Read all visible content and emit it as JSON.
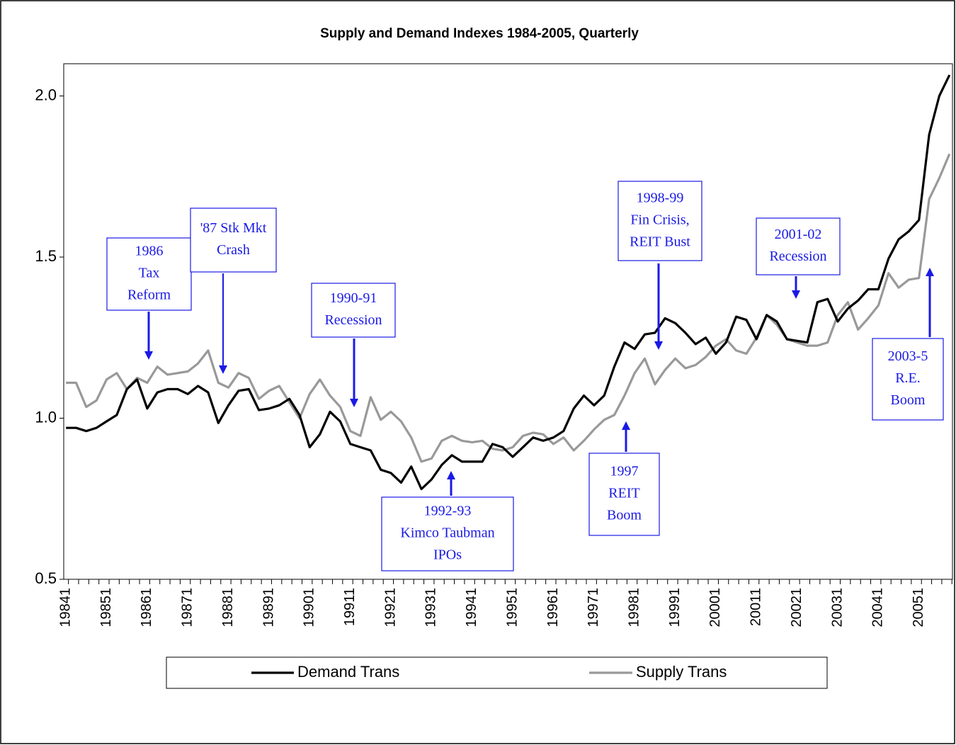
{
  "chart_data": {
    "type": "line",
    "title": "Supply and Demand Indexes 1984-2005, Quarterly",
    "categories": [
      "19841",
      null,
      null,
      null,
      "19851",
      null,
      null,
      null,
      "19861",
      null,
      null,
      null,
      "19871",
      null,
      null,
      null,
      "19881",
      null,
      null,
      null,
      "19891",
      null,
      null,
      null,
      "19901",
      null,
      null,
      null,
      "19911",
      null,
      null,
      null,
      "19921",
      null,
      null,
      null,
      "19931",
      null,
      null,
      null,
      "19941",
      null,
      null,
      null,
      "19951",
      null,
      null,
      null,
      "19961",
      null,
      null,
      null,
      "19971",
      null,
      null,
      null,
      "19981",
      null,
      null,
      null,
      "19991",
      null,
      null,
      null,
      "20001",
      null,
      null,
      null,
      "20011",
      null,
      null,
      null,
      "20021",
      null,
      null,
      null,
      "20031",
      null,
      null,
      null,
      "20041",
      null,
      null,
      null,
      "20051",
      null,
      null,
      null
    ],
    "series": [
      {
        "name": "Demand Trans",
        "color": "#000000",
        "values": [
          0.97,
          0.97,
          0.96,
          0.97,
          0.99,
          1.01,
          1.09,
          1.12,
          1.03,
          1.08,
          1.09,
          1.09,
          1.075,
          1.1,
          1.08,
          0.985,
          1.04,
          1.085,
          1.09,
          1.025,
          1.03,
          1.04,
          1.06,
          1.01,
          0.91,
          0.95,
          1.02,
          0.99,
          0.92,
          0.91,
          0.9,
          0.84,
          0.83,
          0.8,
          0.85,
          0.78,
          0.81,
          0.855,
          0.885,
          0.865,
          0.865,
          0.865,
          0.92,
          0.91,
          0.88,
          0.91,
          0.94,
          0.93,
          0.94,
          0.96,
          1.03,
          1.07,
          1.04,
          1.07,
          1.16,
          1.235,
          1.215,
          1.26,
          1.265,
          1.31,
          1.295,
          1.265,
          1.23,
          1.25,
          1.2,
          1.235,
          1.315,
          1.305,
          1.245,
          1.32,
          1.3,
          1.245,
          1.24,
          1.235,
          1.36,
          1.37,
          1.3,
          1.34,
          1.365,
          1.4,
          1.4,
          1.495,
          1.555,
          1.58,
          1.615,
          1.88,
          2.0,
          2.065
        ]
      },
      {
        "name": "Supply Trans",
        "color": "#999999",
        "values": [
          1.11,
          1.11,
          1.035,
          1.055,
          1.12,
          1.14,
          1.09,
          1.125,
          1.11,
          1.16,
          1.135,
          1.14,
          1.145,
          1.17,
          1.21,
          1.11,
          1.095,
          1.14,
          1.125,
          1.06,
          1.085,
          1.1,
          1.05,
          1.0,
          1.075,
          1.12,
          1.07,
          1.035,
          0.96,
          0.945,
          1.065,
          0.995,
          1.02,
          0.99,
          0.94,
          0.865,
          0.875,
          0.93,
          0.945,
          0.93,
          0.925,
          0.93,
          0.905,
          0.9,
          0.91,
          0.945,
          0.955,
          0.95,
          0.92,
          0.94,
          0.9,
          0.93,
          0.965,
          0.995,
          1.01,
          1.07,
          1.14,
          1.185,
          1.105,
          1.15,
          1.185,
          1.155,
          1.165,
          1.19,
          1.225,
          1.245,
          1.21,
          1.2,
          1.25,
          1.32,
          1.29,
          1.245,
          1.235,
          1.225,
          1.225,
          1.235,
          1.32,
          1.36,
          1.275,
          1.31,
          1.35,
          1.45,
          1.405,
          1.43,
          1.435,
          1.68,
          1.745,
          1.82
        ]
      }
    ],
    "ylim": [
      0.5,
      2.1
    ],
    "yticks": [
      {
        "value": 0.5,
        "label": "0.5"
      },
      {
        "value": 1.0,
        "label": "1.0"
      },
      {
        "value": 1.5,
        "label": "1.5"
      },
      {
        "value": 2.0,
        "label": "2.0"
      }
    ],
    "grid": false,
    "legend": "bottom",
    "annotations": [
      {
        "lines": [
          "1986",
          "Tax",
          "Reform"
        ]
      },
      {
        "lines": [
          "'87 Stk Mkt",
          "Crash"
        ]
      },
      {
        "lines": [
          "1990-91",
          "Recession"
        ]
      },
      {
        "lines": [
          "1992-93",
          "Kimco Taubman",
          "IPOs"
        ]
      },
      {
        "lines": [
          "1998-99",
          "Fin Crisis,",
          "REIT Bust"
        ]
      },
      {
        "lines": [
          "1997",
          "REIT",
          "Boom"
        ]
      },
      {
        "lines": [
          "2001-02",
          "Recession"
        ]
      },
      {
        "lines": [
          "2003-5",
          "R.E.",
          "Boom"
        ]
      }
    ]
  }
}
